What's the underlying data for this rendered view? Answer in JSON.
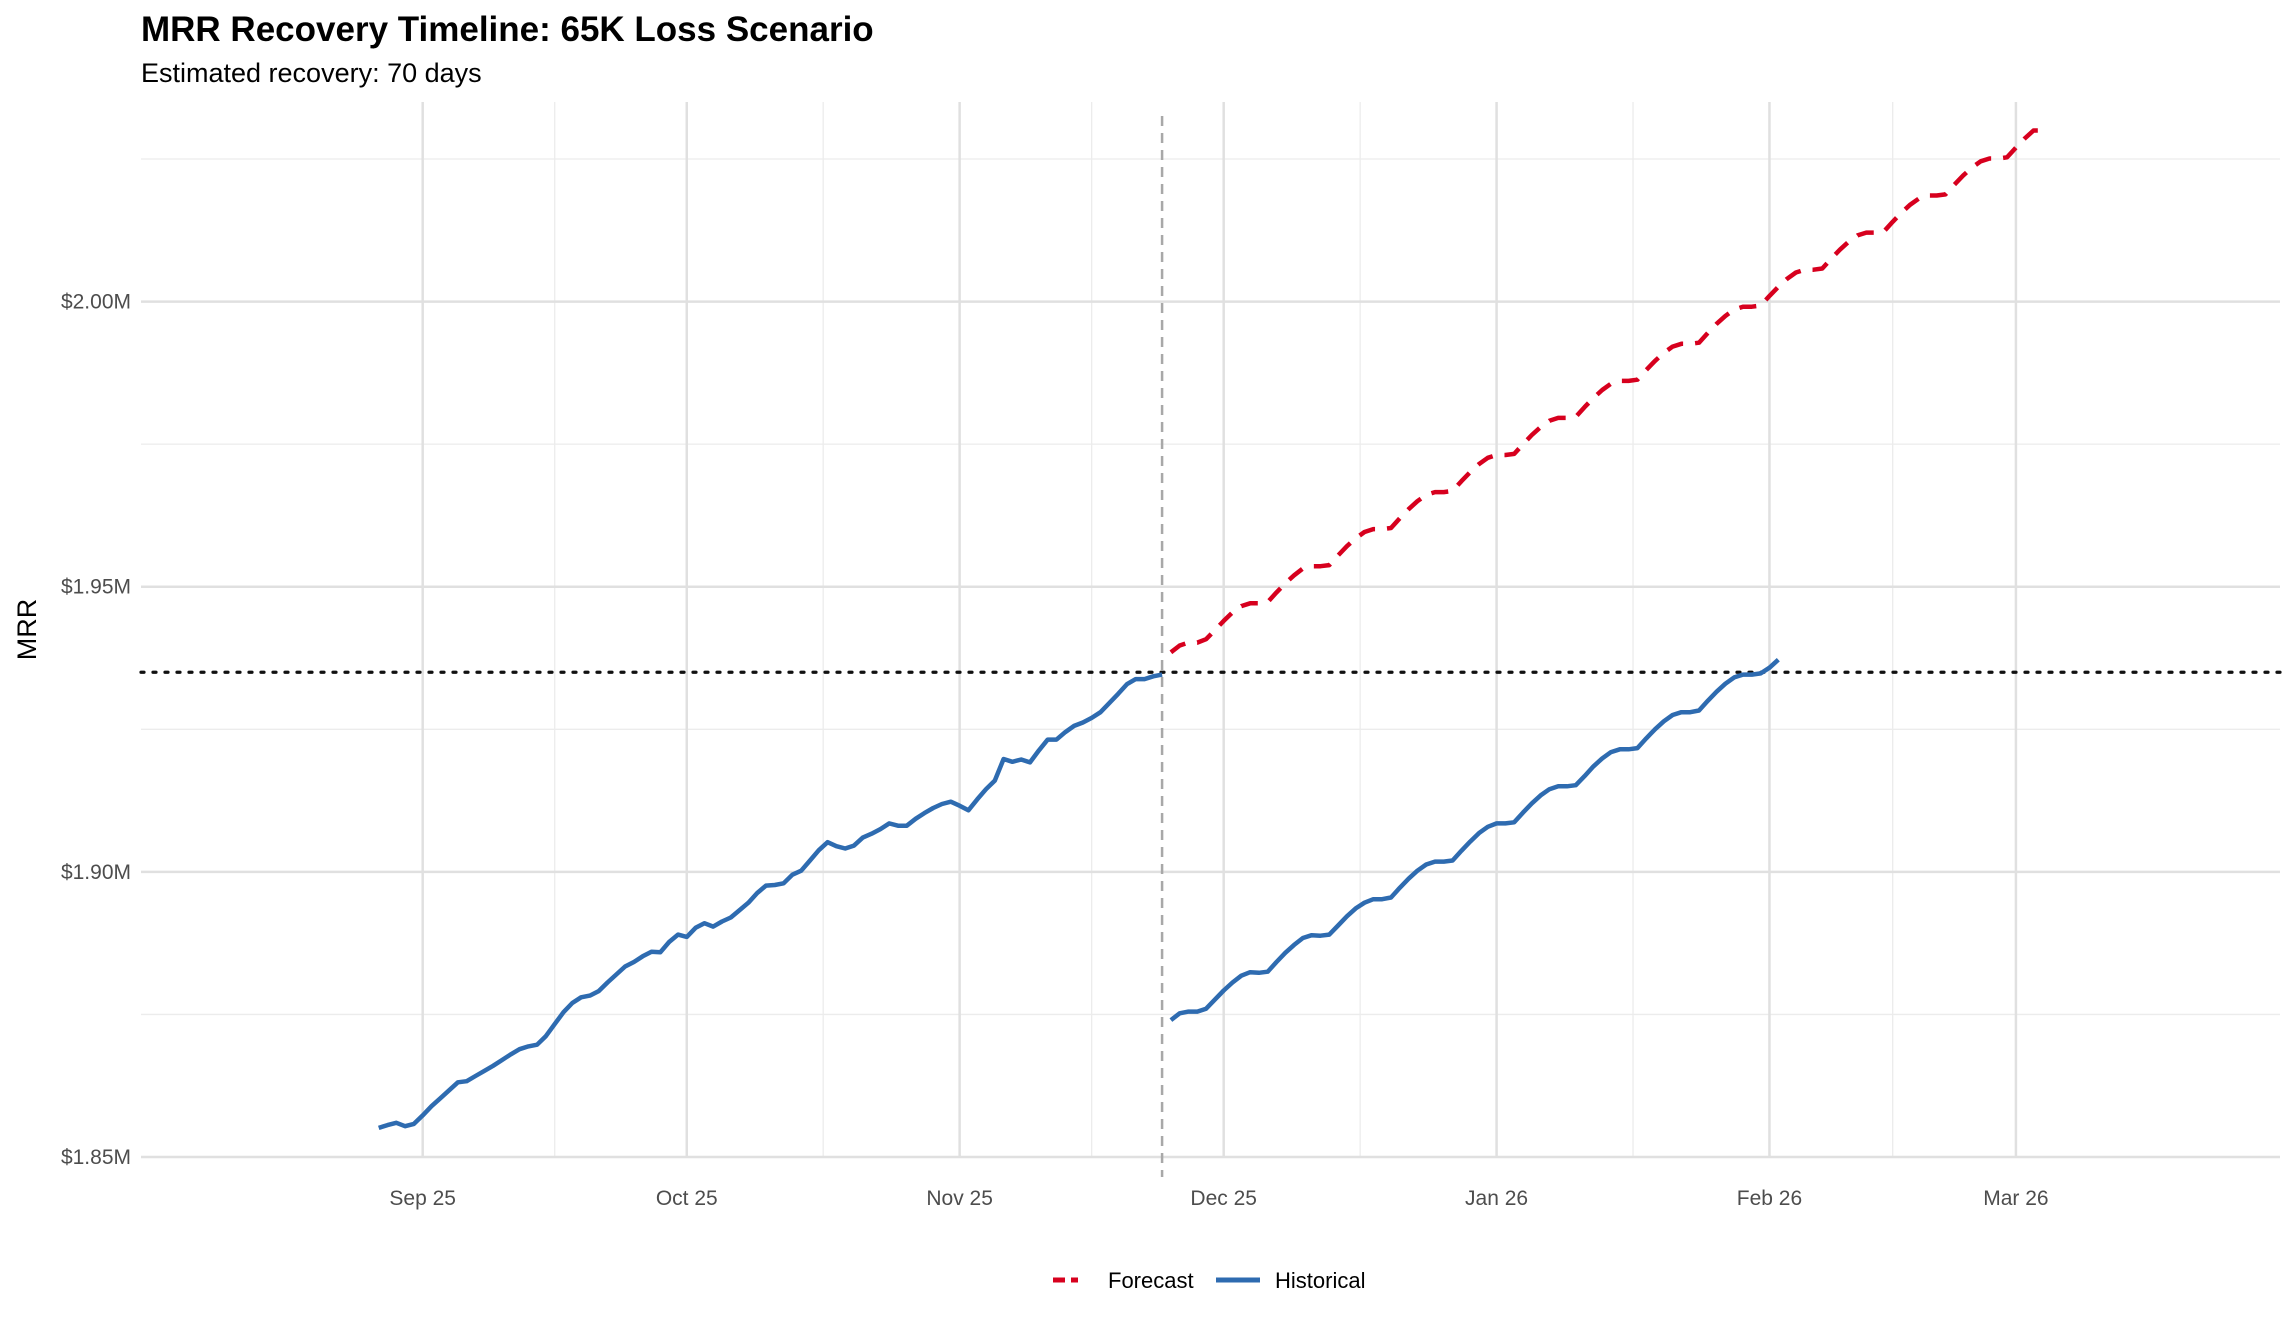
{
  "title": "MRR Recovery Timeline: 65K Loss Scenario",
  "subtitle": "Estimated recovery: 70 days",
  "chart_data": {
    "type": "line",
    "title": "MRR Recovery Timeline: 65K Loss Scenario",
    "subtitle": "Estimated recovery: 70 days",
    "xlabel": "",
    "ylabel": "MRR",
    "x_domain_days": [
      -32,
      211
    ],
    "ylim": [
      1.85,
      2.035
    ],
    "x_ticks": [
      {
        "day": 0,
        "label": "Sep 25"
      },
      {
        "day": 30,
        "label": "Oct 25"
      },
      {
        "day": 61,
        "label": "Nov 25"
      },
      {
        "day": 91,
        "label": "Dec 25"
      },
      {
        "day": 122,
        "label": "Jan 26"
      },
      {
        "day": 153,
        "label": "Feb 26"
      },
      {
        "day": 181,
        "label": "Mar 26"
      }
    ],
    "x_minor_days": [
      15,
      45.5,
      76,
      106.5,
      137.5,
      167
    ],
    "y_ticks": [
      {
        "value": 1.85,
        "label": "$1.85M"
      },
      {
        "value": 1.9,
        "label": "$1.90M"
      },
      {
        "value": 1.95,
        "label": "$1.95M"
      },
      {
        "value": 2.0,
        "label": "$2.00M"
      }
    ],
    "y_minor": [
      1.875,
      1.925,
      1.975,
      2.025
    ],
    "reference_lines": {
      "baseline_mrr": 1.935,
      "event_day": 84
    },
    "legend": {
      "position": "bottom",
      "entries": [
        "Forecast",
        "Historical"
      ]
    },
    "series": [
      {
        "name": "Historical",
        "color": "#2e6bb0",
        "style": "solid",
        "segments": [
          {
            "x": [
              -5,
              -4,
              -3,
              -2,
              -1,
              0,
              1,
              2,
              3,
              4,
              5,
              6,
              7,
              8,
              9,
              10,
              11,
              12,
              13,
              14,
              15,
              16,
              17,
              18,
              19,
              20,
              21,
              22,
              23,
              24,
              25,
              26,
              27,
              28,
              29,
              30,
              31,
              32,
              33,
              34,
              35,
              36,
              37,
              38,
              39,
              40,
              41,
              42,
              43,
              44,
              45,
              46,
              47,
              48,
              49,
              50,
              51,
              52,
              53,
              54,
              55,
              56,
              57,
              58,
              59,
              60,
              61,
              62,
              63,
              64,
              65,
              66,
              67,
              68,
              69,
              70,
              71,
              72,
              73,
              74,
              75,
              76,
              77,
              78,
              79,
              80,
              81,
              82,
              83,
              84
            ],
            "y": [
              1.8551,
              1.8556,
              1.856,
              1.8554,
              1.8558,
              1.8573,
              1.8589,
              1.8603,
              1.8617,
              1.8631,
              1.8633,
              1.8642,
              1.8651,
              1.866,
              1.867,
              1.868,
              1.8689,
              1.8694,
              1.8697,
              1.8712,
              1.8733,
              1.8754,
              1.877,
              1.878,
              1.8783,
              1.8791,
              1.8806,
              1.882,
              1.8834,
              1.8842,
              1.8852,
              1.886,
              1.8859,
              1.8877,
              1.889,
              1.8886,
              1.8902,
              1.891,
              1.8904,
              1.8913,
              1.892,
              1.8933,
              1.8946,
              1.8963,
              1.8976,
              1.8977,
              1.898,
              1.8995,
              1.9002,
              1.902,
              1.9038,
              1.9052,
              1.9045,
              1.9041,
              1.9046,
              1.906,
              1.9067,
              1.9075,
              1.9085,
              1.9081,
              1.9081,
              1.9093,
              1.9103,
              1.9112,
              1.9119,
              1.9123,
              1.9116,
              1.9108,
              1.9127,
              1.9145,
              1.916,
              1.9198,
              1.9193,
              1.9197,
              1.9192,
              1.9213,
              1.9232,
              1.9232,
              1.9245,
              1.9256,
              1.9262,
              1.927,
              1.928,
              1.9296,
              1.9312,
              1.9329,
              1.9338,
              1.9338,
              1.9343,
              1.9346
            ]
          },
          {
            "x": [
              85,
              86,
              87,
              88,
              89,
              90,
              91,
              92,
              93,
              94,
              95,
              96,
              97,
              98,
              99,
              100,
              101,
              102,
              103,
              104,
              105,
              106,
              107,
              108,
              109,
              110,
              111,
              112,
              113,
              114,
              115,
              116,
              117,
              118,
              119,
              120,
              121,
              122,
              123,
              124,
              125,
              126,
              127,
              128,
              129,
              130,
              131,
              132,
              133,
              134,
              135,
              136,
              137,
              138,
              139,
              140,
              141,
              142,
              143,
              144,
              145,
              146,
              147,
              148,
              149,
              150,
              151,
              152,
              153,
              154
            ],
            "y": [
              1.874,
              1.8752,
              1.8755,
              1.8755,
              1.876,
              1.8776,
              1.8792,
              1.8806,
              1.8818,
              1.8824,
              1.8823,
              1.8825,
              1.8842,
              1.8858,
              1.8872,
              1.8884,
              1.8889,
              1.8888,
              1.889,
              1.8906,
              1.8922,
              1.8936,
              1.8946,
              1.8952,
              1.8952,
              1.8955,
              1.8972,
              1.8988,
              1.9002,
              1.9013,
              1.9018,
              1.9018,
              1.902,
              1.9037,
              1.9053,
              1.9068,
              1.9079,
              1.9085,
              1.9085,
              1.9087,
              1.9104,
              1.912,
              1.9134,
              1.9145,
              1.915,
              1.915,
              1.9152,
              1.9168,
              1.9185,
              1.9199,
              1.921,
              1.9215,
              1.9215,
              1.9217,
              1.9234,
              1.925,
              1.9264,
              1.9275,
              1.928,
              1.928,
              1.9283,
              1.93,
              1.9316,
              1.933,
              1.9341,
              1.9346,
              1.9346,
              1.9348,
              1.9358,
              1.9372
            ]
          }
        ]
      },
      {
        "name": "Forecast",
        "color": "#d7001e",
        "style": "dashed",
        "segments": [
          {
            "x": [
              85,
              86,
              87,
              88,
              89,
              90,
              91,
              92,
              93,
              94,
              95,
              96,
              97,
              98,
              99,
              100,
              101,
              102,
              103,
              104,
              105,
              106,
              107,
              108,
              109,
              110,
              111,
              112,
              113,
              114,
              115,
              116,
              117,
              118,
              119,
              120,
              121,
              122,
              123,
              124,
              125,
              126,
              127,
              128,
              129,
              130,
              131,
              132,
              133,
              134,
              135,
              136,
              137,
              138,
              139,
              140,
              141,
              142,
              143,
              144,
              145,
              146,
              147,
              148,
              149,
              150,
              151,
              152,
              153,
              154,
              155,
              156,
              157,
              158,
              159,
              160,
              161,
              162,
              163,
              164,
              165,
              166,
              167,
              168,
              169,
              170,
              171,
              172,
              173,
              174,
              175,
              176,
              177,
              178,
              179,
              180,
              181,
              182,
              183,
              184
            ],
            "y": [
              1.9385,
              1.9397,
              1.9402,
              1.9402,
              1.9408,
              1.9424,
              1.944,
              1.9455,
              1.9466,
              1.9471,
              1.9471,
              1.9473,
              1.949,
              1.9506,
              1.952,
              1.9532,
              1.9536,
              1.9536,
              1.9538,
              1.9555,
              1.9571,
              1.9585,
              1.9596,
              1.9601,
              1.9601,
              1.9603,
              1.962,
              1.9636,
              1.965,
              1.9661,
              1.9666,
              1.9666,
              1.9668,
              1.9685,
              1.9701,
              1.9715,
              1.9726,
              1.9731,
              1.9731,
              1.9733,
              1.975,
              1.9766,
              1.978,
              1.9791,
              1.9796,
              1.9796,
              1.9798,
              1.9815,
              1.9831,
              1.9845,
              1.9856,
              1.9861,
              1.9861,
              1.9863,
              1.988,
              1.9896,
              1.991,
              1.9921,
              1.9926,
              1.9926,
              1.9928,
              1.9945,
              1.9961,
              1.9975,
              1.9986,
              1.9991,
              1.9991,
              1.9993,
              2.001,
              2.0026,
              2.004,
              2.0051,
              2.0056,
              2.0056,
              2.0058,
              2.0075,
              2.0091,
              2.0105,
              2.0116,
              2.0121,
              2.0121,
              2.0123,
              2.014,
              2.0156,
              2.017,
              2.0181,
              2.0186,
              2.0186,
              2.0188,
              2.0205,
              2.0221,
              2.0235,
              2.0246,
              2.0251,
              2.0251,
              2.0253,
              2.027,
              2.0286,
              2.03,
              2.03
            ]
          }
        ]
      }
    ]
  }
}
